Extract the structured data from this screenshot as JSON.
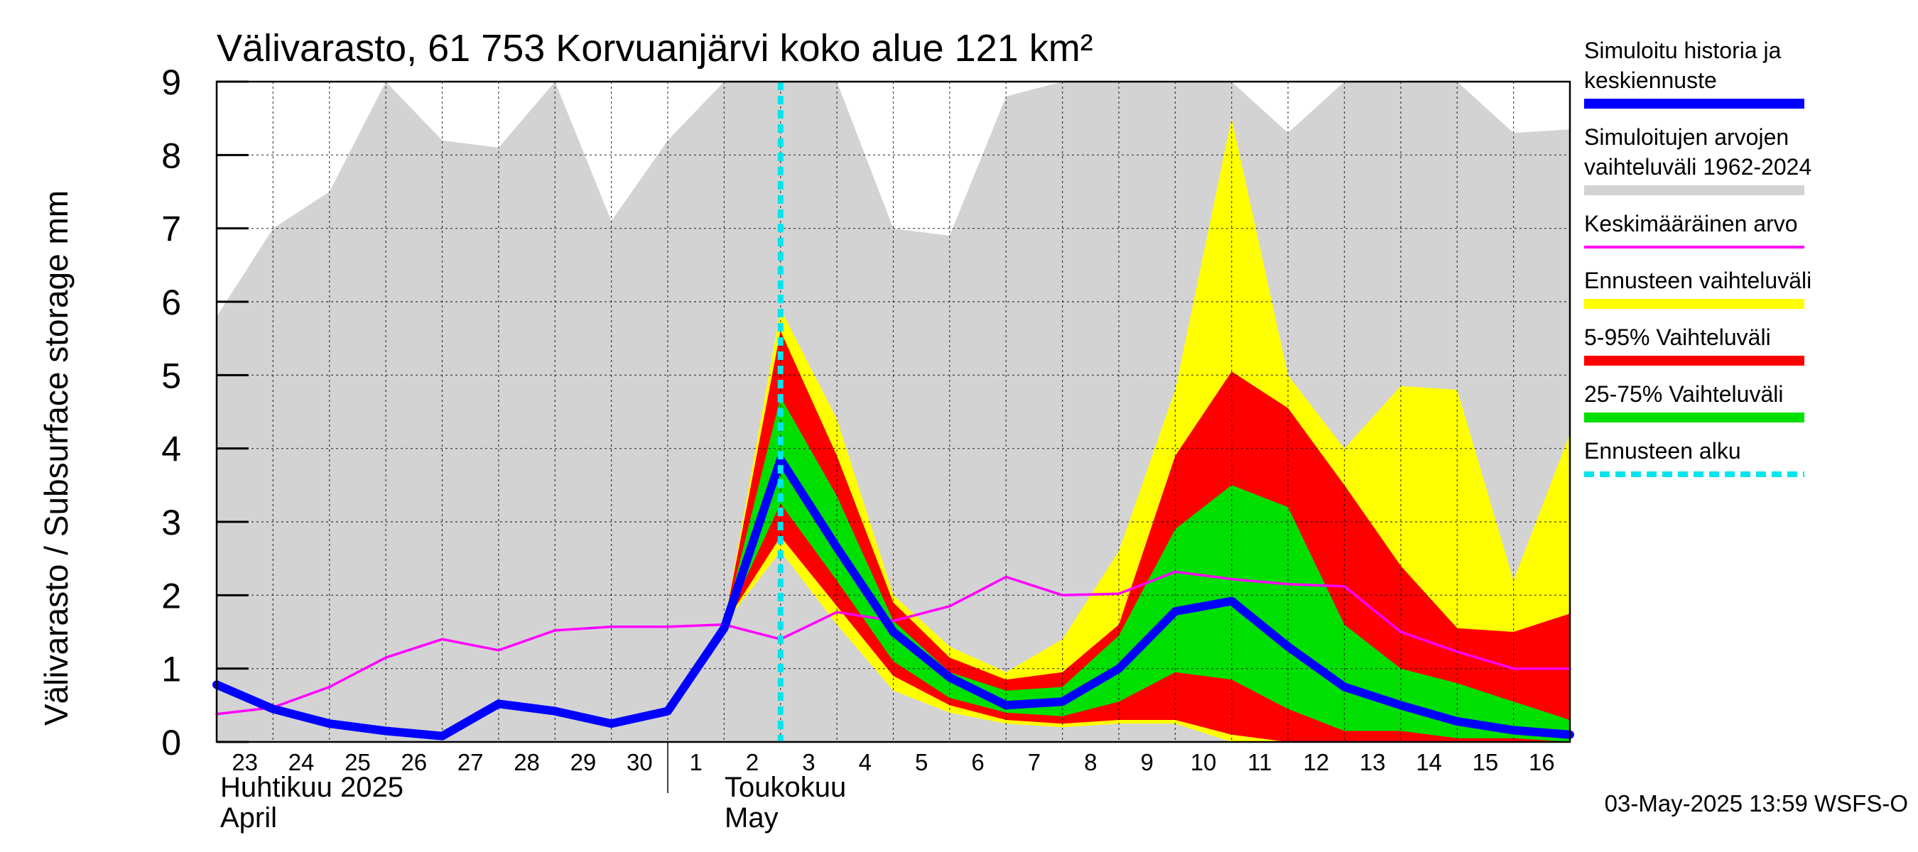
{
  "chart_data": {
    "type": "area",
    "title": "Välivarasto, 61 753 Korvuanjärvi koko alue 121 km²",
    "ylabel": "Välivarasto / Subsurface storage  mm",
    "ylim": [
      0,
      9
    ],
    "yticks": [
      "0",
      "1",
      "2",
      "3",
      "4",
      "5",
      "6",
      "7",
      "8",
      "9"
    ],
    "grid": true,
    "legend_position": "right",
    "x": [
      "23",
      "24",
      "25",
      "26",
      "27",
      "28",
      "29",
      "30",
      "1",
      "2",
      "3",
      "4",
      "5",
      "6",
      "7",
      "8",
      "9",
      "10",
      "11",
      "12",
      "13",
      "14",
      "15",
      "16",
      "17"
    ],
    "x_tick_labels": [
      "23",
      "24",
      "25",
      "26",
      "27",
      "28",
      "29",
      "30",
      "1",
      "2",
      "3",
      "4",
      "5",
      "6",
      "7",
      "8",
      "9",
      "10",
      "11",
      "12",
      "13",
      "14",
      "15",
      "16"
    ],
    "month_labels": [
      {
        "fi": "Huhtikuu  2025",
        "en": "April"
      },
      {
        "fi": "Toukokuu",
        "en": "May"
      }
    ],
    "forecast_start": "3",
    "series": [
      {
        "name": "Simuloitujen arvojen vaihteluväli 1962-2024",
        "color": "#d3d3d3",
        "upper": [
          5.8,
          7.0,
          7.5,
          9.0,
          8.2,
          8.1,
          9.0,
          7.1,
          8.2,
          9.0,
          9.0,
          9.0,
          7.0,
          6.9,
          8.8,
          9.0,
          9.0,
          9.0,
          9.0,
          8.3,
          9.0,
          9.0,
          9.0,
          8.3,
          8.35
        ],
        "lower": [
          0,
          0,
          0,
          0,
          0,
          0,
          0,
          0,
          0,
          0,
          0,
          0,
          0,
          0,
          0,
          0,
          0,
          0,
          0,
          0,
          0,
          0,
          0,
          0,
          0
        ]
      },
      {
        "name": "Ennusteen vaihteluväli",
        "color": "#ffff00",
        "upper": [
          1.6,
          5.9,
          4.4,
          2.0,
          1.3,
          0.95,
          1.4,
          2.6,
          4.8,
          8.5,
          5.0,
          4.0,
          4.85,
          4.8,
          2.2,
          4.2
        ],
        "lower": [
          1.6,
          2.6,
          1.6,
          0.7,
          0.4,
          0.25,
          0.2,
          0.25,
          0.25,
          0.0,
          0.0,
          0.0,
          0.0,
          0.0,
          0.0,
          0.0
        ]
      },
      {
        "name": "5-95% Vaihteluväli",
        "color": "#ff0000",
        "upper": [
          1.6,
          5.6,
          3.9,
          1.9,
          1.15,
          0.85,
          0.95,
          1.6,
          3.9,
          5.05,
          4.55,
          3.5,
          2.4,
          1.55,
          1.5,
          1.75
        ],
        "lower": [
          1.6,
          2.8,
          1.85,
          0.9,
          0.5,
          0.3,
          0.25,
          0.3,
          0.3,
          0.1,
          0.0,
          0.0,
          0.0,
          0.0,
          0.0,
          0.0
        ]
      },
      {
        "name": "25-75% Vaihteluväli",
        "color": "#00e000",
        "upper": [
          1.6,
          4.7,
          3.35,
          1.65,
          0.95,
          0.7,
          0.75,
          1.45,
          2.9,
          3.5,
          3.2,
          1.6,
          1.0,
          0.8,
          0.55,
          0.3
        ],
        "lower": [
          1.6,
          3.25,
          2.2,
          1.1,
          0.6,
          0.4,
          0.35,
          0.55,
          0.95,
          0.85,
          0.45,
          0.15,
          0.15,
          0.05,
          0.05,
          0.0
        ]
      },
      {
        "name": "Keskimääräinen arvo",
        "color": "#ff00ff",
        "values": [
          0.38,
          0.47,
          0.75,
          1.15,
          1.4,
          1.25,
          1.52,
          1.57,
          1.57,
          1.6,
          1.4,
          1.77,
          1.65,
          1.85,
          2.25,
          2.0,
          2.02,
          2.32,
          2.22,
          2.15,
          2.12,
          1.5,
          1.23,
          1.0,
          1.0
        ]
      },
      {
        "name": "Simuloitu historia ja keskiennuste",
        "color": "#0000ff",
        "values": [
          0.78,
          0.45,
          0.25,
          0.15,
          0.08,
          0.52,
          0.42,
          0.25,
          0.42,
          1.55,
          3.85,
          2.65,
          1.5,
          0.88,
          0.5,
          0.55,
          1.0,
          1.78,
          1.92,
          1.3,
          0.75,
          0.5,
          0.28,
          0.16,
          0.1
        ]
      }
    ]
  },
  "legend": [
    {
      "label": "Simuloitu historia ja keskiennuste",
      "color": "#0000ff",
      "style": "thick"
    },
    {
      "label": "Simuloitujen arvojen vaihteluväli 1962-2024",
      "color": "#d3d3d3",
      "style": "thick"
    },
    {
      "label": "Keskimääräinen arvo",
      "color": "#ff00ff",
      "style": "thin"
    },
    {
      "label": "Ennusteen vaihteluväli",
      "color": "#ffff00",
      "style": "thick"
    },
    {
      "label": "5-95% Vaihteluväli",
      "color": "#ff0000",
      "style": "thick"
    },
    {
      "label": "25-75% Vaihteluväli",
      "color": "#00e000",
      "style": "thick"
    },
    {
      "label": "Ennusteen alku",
      "color": "#00e5ee",
      "style": "dashed"
    }
  ],
  "timestamp": "03-May-2025 13:59 WSFS-O"
}
